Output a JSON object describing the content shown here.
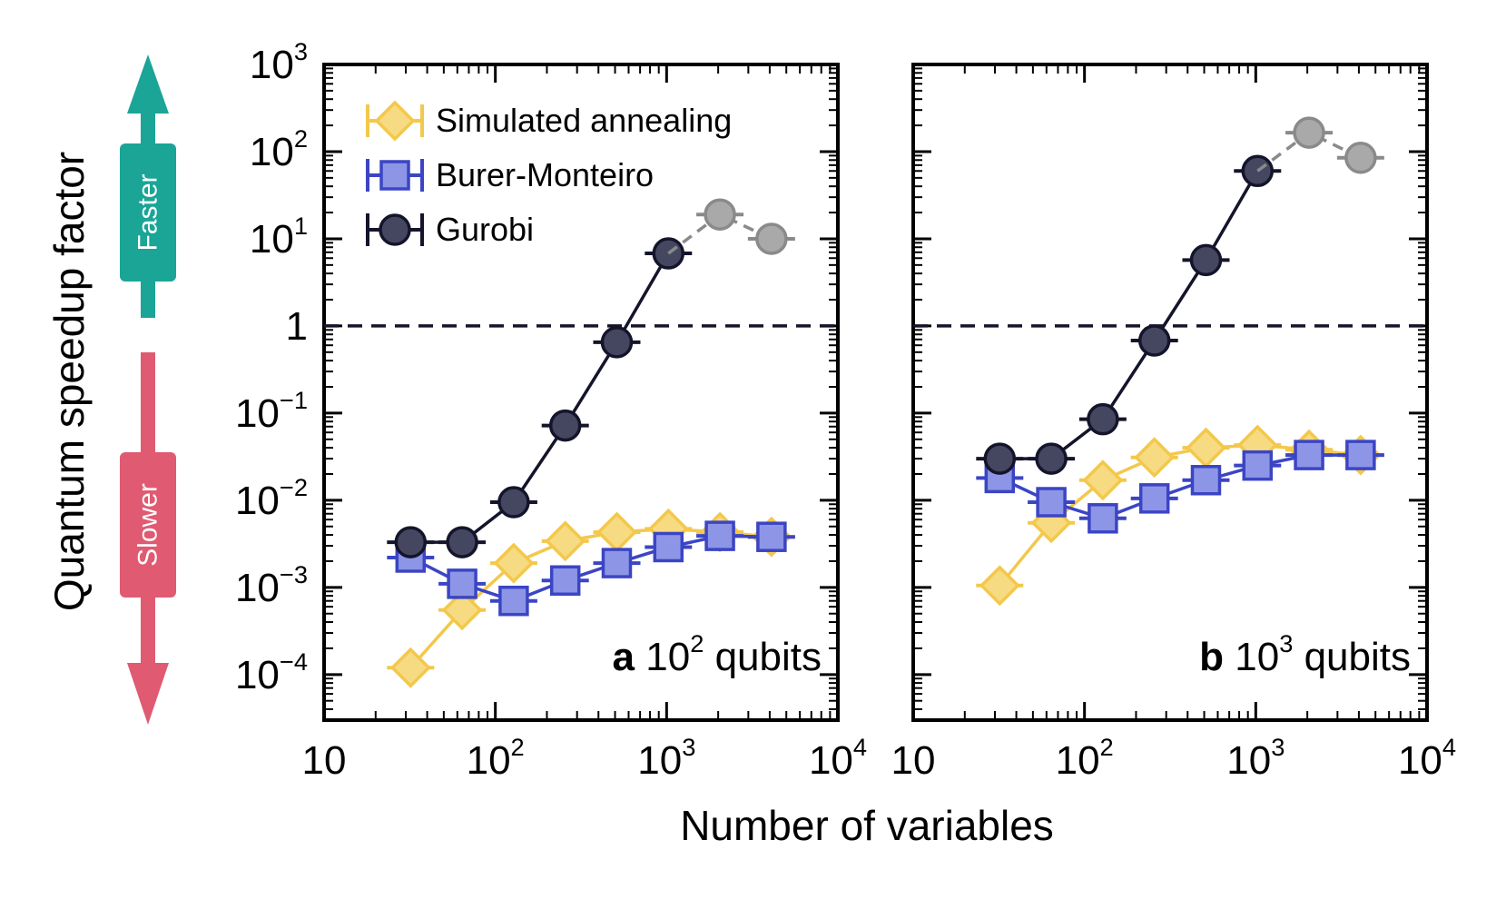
{
  "figure": {
    "ylabel": "Quantum speedup factor",
    "xlabel": "Number of variables",
    "faster_label": "Faster",
    "slower_label": "Slower",
    "faster_color": "#1aa596",
    "slower_color": "#e05a72"
  },
  "y_ticks": [
    {
      "value": -4,
      "base": "10",
      "exp": "−4"
    },
    {
      "value": -3,
      "base": "10",
      "exp": "−3"
    },
    {
      "value": -2,
      "base": "10",
      "exp": "−2"
    },
    {
      "value": -1,
      "base": "10",
      "exp": "−1"
    },
    {
      "value": 0,
      "base": "1",
      "exp": ""
    },
    {
      "value": 1,
      "base": "10",
      "exp": "1"
    },
    {
      "value": 2,
      "base": "10",
      "exp": "2"
    },
    {
      "value": 3,
      "base": "10",
      "exp": "3"
    }
  ],
  "x_ticks": [
    {
      "value": 1,
      "base": "10",
      "exp": ""
    },
    {
      "value": 2,
      "base": "10",
      "exp": "2"
    },
    {
      "value": 3,
      "base": "10",
      "exp": "3"
    },
    {
      "value": 4,
      "base": "10",
      "exp": "4"
    }
  ],
  "legend": [
    {
      "key": "sa",
      "label": "Simulated annealing"
    },
    {
      "key": "bm",
      "label": "Burer-Monteiro"
    },
    {
      "key": "gurobi",
      "label": "Gurobi"
    }
  ],
  "series_style": {
    "sa": {
      "line": "#f3c84b",
      "fill": "#f7db82",
      "marker": "diamond"
    },
    "bm": {
      "line": "#3b45c4",
      "fill": "#8d96e6",
      "marker": "square"
    },
    "gurobi": {
      "line": "#14142b",
      "fill": "#454761",
      "marker": "circle"
    },
    "gurobi_extrap": {
      "line": "#8a8a8a",
      "fill": "#a9a9a9",
      "marker": "circle"
    }
  },
  "chart_data": [
    {
      "type": "line",
      "panel_letter": "a",
      "panel_text_base": "10",
      "panel_text_exp": "2",
      "panel_text_suffix": "qubits",
      "xlabel": "Number of variables",
      "ylabel": "Quantum speedup factor",
      "xscale": "log",
      "yscale": "log",
      "xlim": [
        10,
        10000
      ],
      "ylim": [
        3e-05,
        1000
      ],
      "reference_line_y": 1,
      "series": [
        {
          "name": "Simulated annealing",
          "key": "sa",
          "x": [
            32,
            64,
            128,
            256,
            512,
            1024,
            2048,
            4096
          ],
          "y": [
            0.00012,
            0.00055,
            0.0019,
            0.0034,
            0.0043,
            0.0047,
            0.0043,
            0.0038
          ]
        },
        {
          "name": "Burer-Monteiro",
          "key": "bm",
          "x": [
            32,
            64,
            128,
            256,
            512,
            1024,
            2048,
            4096
          ],
          "y": [
            0.0022,
            0.0011,
            0.0007,
            0.0012,
            0.0019,
            0.0029,
            0.0039,
            0.0038
          ]
        },
        {
          "name": "Gurobi",
          "key": "gurobi",
          "x": [
            32,
            64,
            128,
            256,
            512,
            1024
          ],
          "y": [
            0.0033,
            0.0033,
            0.0095,
            0.072,
            0.65,
            6.8
          ]
        },
        {
          "name": "Gurobi (extrapolated)",
          "key": "gurobi_extrap",
          "x": [
            1024,
            2048,
            4096
          ],
          "y": [
            6.8,
            19,
            10
          ]
        }
      ]
    },
    {
      "type": "line",
      "panel_letter": "b",
      "panel_text_base": "10",
      "panel_text_exp": "3",
      "panel_text_suffix": "qubits",
      "xlabel": "Number of variables",
      "ylabel": "Quantum speedup factor",
      "xscale": "log",
      "yscale": "log",
      "xlim": [
        10,
        10000
      ],
      "ylim": [
        3e-05,
        1000
      ],
      "reference_line_y": 1,
      "series": [
        {
          "name": "Simulated annealing",
          "key": "sa",
          "x": [
            32,
            64,
            128,
            256,
            512,
            1024,
            2048,
            4096
          ],
          "y": [
            0.00105,
            0.0055,
            0.017,
            0.031,
            0.04,
            0.043,
            0.038,
            0.033
          ]
        },
        {
          "name": "Burer-Monteiro",
          "key": "bm",
          "x": [
            32,
            64,
            128,
            256,
            512,
            1024,
            2048,
            4096
          ],
          "y": [
            0.018,
            0.0095,
            0.0062,
            0.0105,
            0.017,
            0.025,
            0.033,
            0.033
          ]
        },
        {
          "name": "Gurobi",
          "key": "gurobi",
          "x": [
            32,
            64,
            128,
            256,
            512,
            1024
          ],
          "y": [
            0.03,
            0.03,
            0.085,
            0.68,
            5.7,
            60
          ]
        },
        {
          "name": "Gurobi (extrapolated)",
          "key": "gurobi_extrap",
          "x": [
            1024,
            2048,
            4096
          ],
          "y": [
            60,
            165,
            85
          ]
        }
      ]
    }
  ]
}
